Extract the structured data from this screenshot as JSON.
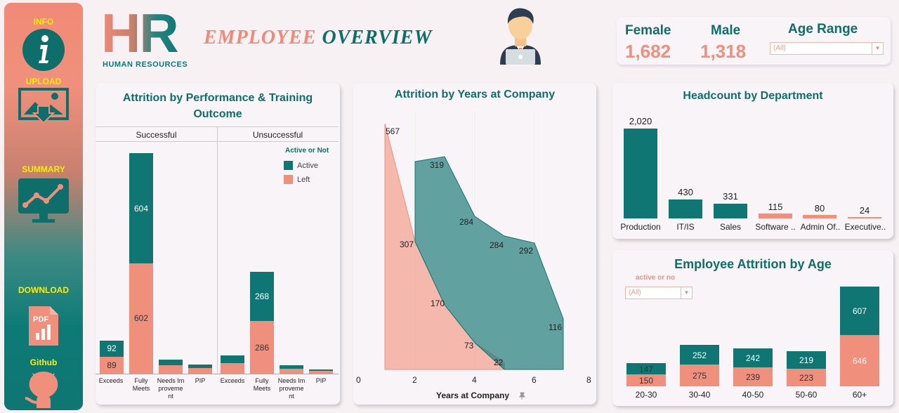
{
  "sidebar": {
    "items": [
      {
        "label": "INFO",
        "icon": "info-icon"
      },
      {
        "label": "UPLOAD",
        "icon": "upload-image-icon"
      },
      {
        "label": "SUMMARY",
        "icon": "summary-chart-icon"
      },
      {
        "label": "DOWNLOAD",
        "icon": "pdf-icon"
      },
      {
        "label": "Github",
        "icon": "github-icon"
      }
    ]
  },
  "header": {
    "logo_text": "HR",
    "logo_sub": "HUMAN RESOURCES",
    "title_part1": "EMPLOYEE",
    "title_part2": "OVERVIEW",
    "avatar_icon": "employee-laptop-icon"
  },
  "kpis": {
    "female_label": "Female",
    "female_value": "1,682",
    "male_label": "Male",
    "male_value": "1,318",
    "age_range_label": "Age Range",
    "age_range_value": "(All)"
  },
  "colors": {
    "teal": "#0f7673",
    "salmon": "#f0907c",
    "yellow_label": "#ffee00"
  },
  "chart_data": [
    {
      "type": "bar",
      "title": "Attrition by Performance & Training Outcome",
      "panels": [
        "Successful",
        "Unsuccessful"
      ],
      "categories": [
        "Exceeds",
        "Fully Meets",
        "Needs Improvement",
        "PIP"
      ],
      "category_labels": [
        "Exceeds",
        "Fully\nMeets",
        "Needs Im\nproveme\nnt",
        "PIP"
      ],
      "legend_title": "Active or Not",
      "legend": [
        "Active",
        "Left"
      ],
      "series": [
        {
          "name": "Active",
          "panel": "Successful",
          "values": [
            92,
            604,
            30,
            18
          ]
        },
        {
          "name": "Left",
          "panel": "Successful",
          "values": [
            89,
            602,
            40,
            20
          ]
        },
        {
          "name": "Active",
          "panel": "Unsuccessful",
          "values": [
            40,
            268,
            18,
            6
          ]
        },
        {
          "name": "Left",
          "panel": "Unsuccessful",
          "values": [
            55,
            286,
            25,
            10
          ]
        }
      ],
      "labels": {
        "s_active": [
          "92",
          "604"
        ],
        "s_left": [
          "89",
          "602"
        ],
        "u_active": "268",
        "u_left": "286"
      }
    },
    {
      "type": "area",
      "title": "Attrition by Years at Company",
      "xlabel": "Years at Company",
      "x_ticks": [
        "0",
        "2",
        "4",
        "6",
        "8"
      ],
      "xlim": [
        0,
        8
      ],
      "series": [
        {
          "name": "Left",
          "points": [
            [
              1,
              567
            ],
            [
              2,
              307
            ],
            [
              3,
              170
            ],
            [
              4,
              73
            ],
            [
              5,
              22
            ]
          ]
        },
        {
          "name": "Active",
          "points": [
            [
              2,
              319
            ],
            [
              3,
              284
            ],
            [
              4,
              284
            ],
            [
              5,
              292
            ],
            [
              6,
              116
            ]
          ]
        }
      ],
      "point_labels": [
        "567",
        "307",
        "170",
        "73",
        "22",
        "319",
        "284",
        "284",
        "292",
        "116"
      ]
    },
    {
      "type": "bar",
      "title": "Headcount by Department",
      "categories": [
        "Production",
        "IT/IS",
        "Sales",
        "Software ..",
        "Admin Of..",
        "Executive.."
      ],
      "values": [
        2020,
        430,
        331,
        115,
        80,
        24
      ],
      "value_labels": [
        "2,020",
        "430",
        "331",
        "115",
        "80",
        "24"
      ]
    },
    {
      "type": "bar",
      "title": "Employee Attrition by Age",
      "filter_label": "active or no",
      "filter_value": "(All)",
      "categories": [
        "20-30",
        "30-40",
        "40-50",
        "50-60",
        "60+"
      ],
      "series": [
        {
          "name": "Active",
          "values": [
            147,
            252,
            242,
            219,
            607
          ]
        },
        {
          "name": "Left",
          "values": [
            150,
            275,
            239,
            223,
            646
          ]
        }
      ]
    }
  ]
}
